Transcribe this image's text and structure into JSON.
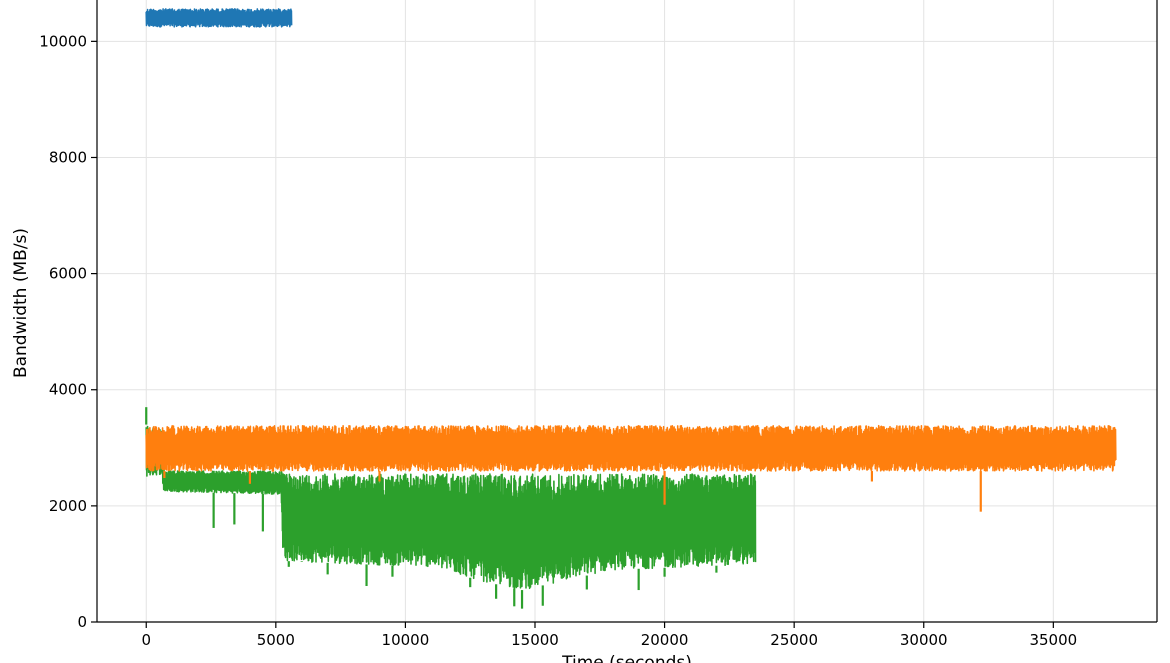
{
  "chart_data": {
    "type": "line",
    "title": "",
    "xlabel": "Time (seconds)",
    "ylabel": "Bandwidth (MB/s)",
    "xlim": [
      -1900,
      39000
    ],
    "ylim": [
      0,
      10850
    ],
    "xticks": [
      0,
      5000,
      10000,
      15000,
      20000,
      25000,
      30000,
      35000
    ],
    "yticks": [
      0,
      2000,
      4000,
      6000,
      8000,
      10000
    ],
    "xtick_labels": [
      "0",
      "5000",
      "10000",
      "15000",
      "20000",
      "25000",
      "30000",
      "35000"
    ],
    "ytick_labels": [
      "0",
      "2000",
      "4000",
      "6000",
      "8000",
      "10000"
    ],
    "grid": true,
    "legend": "none",
    "series": [
      {
        "color": "#1f77b4",
        "x_range": [
          0,
          5600
        ],
        "band_upper": [
          [
            0,
            10560
          ],
          [
            5600,
            10560
          ]
        ],
        "band_lower": [
          [
            0,
            10250
          ],
          [
            5600,
            10250
          ]
        ],
        "dips": []
      },
      {
        "color": "#2ca02c",
        "x_range": [
          0,
          23500
        ],
        "band_upper": [
          [
            0,
            3400
          ],
          [
            600,
            3300
          ],
          [
            700,
            2600
          ],
          [
            5200,
            2600
          ],
          [
            5300,
            2550
          ],
          [
            23500,
            2550
          ]
        ],
        "band_lower": [
          [
            0,
            2500
          ],
          [
            600,
            2550
          ],
          [
            650,
            2250
          ],
          [
            5200,
            2200
          ],
          [
            5250,
            1300
          ],
          [
            5400,
            1050
          ],
          [
            8000,
            1000
          ],
          [
            11000,
            950
          ],
          [
            13000,
            700
          ],
          [
            14500,
            550
          ],
          [
            16000,
            700
          ],
          [
            18000,
            900
          ],
          [
            21000,
            950
          ],
          [
            23500,
            1000
          ]
        ],
        "dips": [
          [
            0,
            3700
          ],
          [
            2600,
            1620
          ],
          [
            3400,
            1680
          ],
          [
            4500,
            1560
          ],
          [
            5500,
            950
          ],
          [
            6000,
            1050
          ],
          [
            7000,
            820
          ],
          [
            8500,
            620
          ],
          [
            9500,
            780
          ],
          [
            12500,
            600
          ],
          [
            13500,
            400
          ],
          [
            14200,
            270
          ],
          [
            14500,
            230
          ],
          [
            15300,
            280
          ],
          [
            17000,
            560
          ],
          [
            19000,
            550
          ],
          [
            20000,
            780
          ],
          [
            22000,
            850
          ]
        ]
      },
      {
        "color": "#ff7f0e",
        "x_range": [
          0,
          37400
        ],
        "band_upper": [
          [
            0,
            3380
          ],
          [
            37400,
            3380
          ]
        ],
        "band_lower": [
          [
            0,
            2600
          ],
          [
            37400,
            2600
          ]
        ],
        "dips": [
          [
            700,
            2480
          ],
          [
            4000,
            2380
          ],
          [
            9000,
            2420
          ],
          [
            20000,
            2020
          ],
          [
            28000,
            2420
          ],
          [
            32200,
            1900
          ]
        ]
      }
    ]
  }
}
